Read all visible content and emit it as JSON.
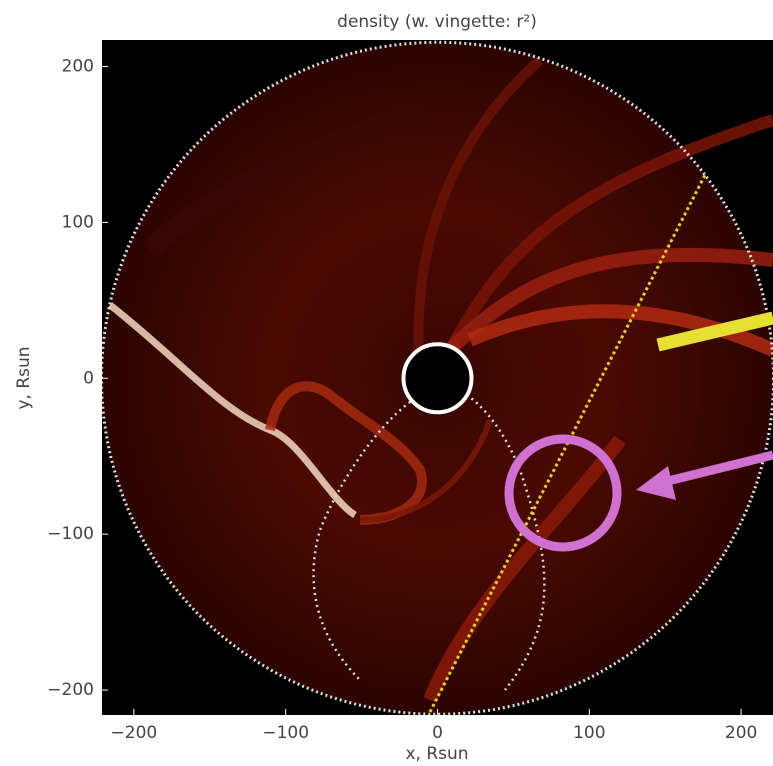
{
  "chart_data": {
    "type": "heatmap",
    "title": "density (w. vingette: r²)",
    "x_label": "x, Rsun",
    "y_label": "y, Rsun",
    "xlim": [
      -221,
      221
    ],
    "ylim": [
      -216,
      217
    ],
    "xticks": [
      {
        "value": -200,
        "label": "−200"
      },
      {
        "value": -100,
        "label": "−100"
      },
      0,
      100,
      200
    ],
    "yticks": [
      {
        "value": -200,
        "label": "−200"
      },
      {
        "value": -100,
        "label": "−100"
      },
      0,
      100,
      200
    ],
    "grid": false
  }
}
